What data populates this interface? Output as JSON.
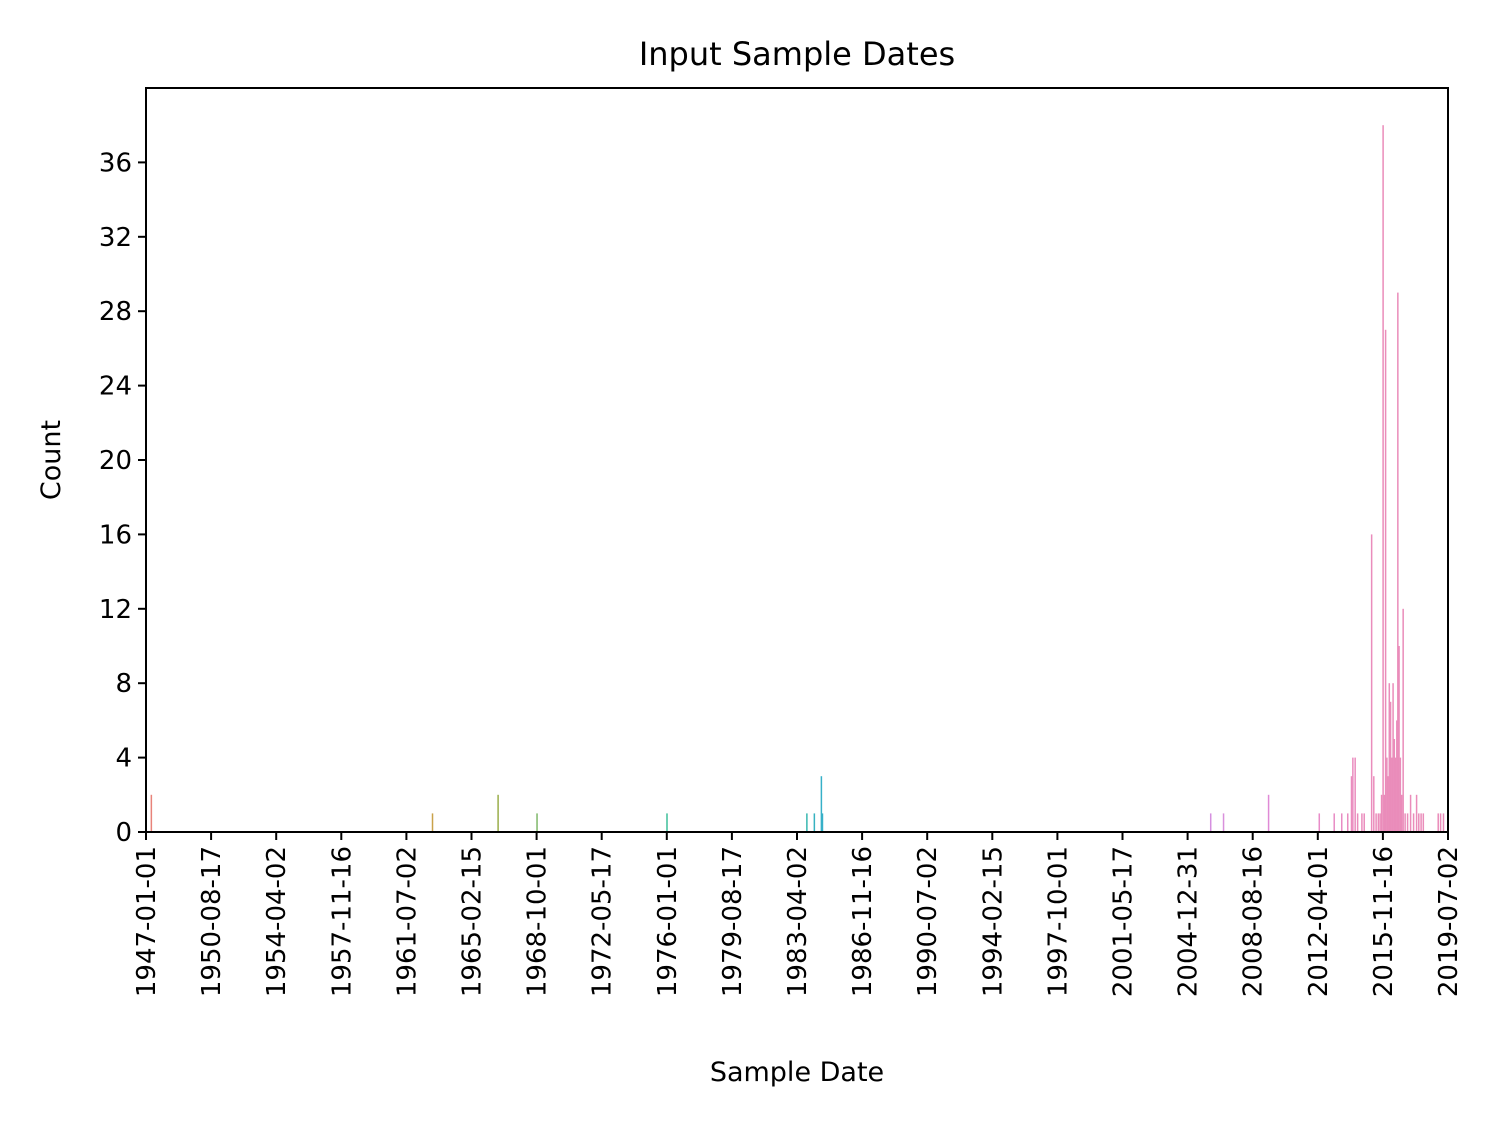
{
  "chart_data": {
    "type": "bar",
    "title": "Input Sample Dates",
    "xlabel": "Sample Date",
    "ylabel": "Count",
    "xlim": [
      "1947-01-01",
      "2019-07-02"
    ],
    "ylim": [
      0,
      40
    ],
    "x_ticks": [
      "1947-01-01",
      "1950-08-17",
      "1954-04-02",
      "1957-11-16",
      "1961-07-02",
      "1965-02-15",
      "1968-10-01",
      "1972-05-17",
      "1976-01-01",
      "1979-08-17",
      "1983-04-02",
      "1986-11-16",
      "1990-07-02",
      "1994-02-15",
      "1997-10-01",
      "2001-05-17",
      "2004-12-31",
      "2008-08-16",
      "2012-04-01",
      "2015-11-16",
      "2019-07-02"
    ],
    "y_ticks": [
      0,
      4,
      8,
      12,
      16,
      20,
      24,
      28,
      32,
      36
    ],
    "grid": false,
    "legend": "none",
    "bars": [
      {
        "date": "1947-04-20",
        "value": 2,
        "color": "#e8837a"
      },
      {
        "date": "1962-12-15",
        "value": 1,
        "color": "#c9a24a"
      },
      {
        "date": "1966-08-10",
        "value": 2,
        "color": "#9aae4a"
      },
      {
        "date": "1968-10-10",
        "value": 1,
        "color": "#7fb86a"
      },
      {
        "date": "1976-01-05",
        "value": 1,
        "color": "#3fbf9a"
      },
      {
        "date": "1983-10-20",
        "value": 1,
        "color": "#38b7b0"
      },
      {
        "date": "1984-03-20",
        "value": 1,
        "color": "#36b2c0"
      },
      {
        "date": "1984-08-10",
        "value": 3,
        "color": "#36b0c8"
      },
      {
        "date": "1984-09-01",
        "value": 1,
        "color": "#36b0c8"
      },
      {
        "date": "2006-04-15",
        "value": 1,
        "color": "#d58fe0"
      },
      {
        "date": "2007-01-01",
        "value": 1,
        "color": "#d990dc"
      },
      {
        "date": "2009-07-05",
        "value": 2,
        "color": "#e08ad6"
      },
      {
        "date": "2012-05-01",
        "value": 1,
        "color": "#e88cc8"
      },
      {
        "date": "2013-03-01",
        "value": 1,
        "color": "#e88cc4"
      },
      {
        "date": "2013-08-01",
        "value": 1,
        "color": "#e88cc4"
      },
      {
        "date": "2013-12-01",
        "value": 1,
        "color": "#e88cc0"
      },
      {
        "date": "2014-02-15",
        "value": 3,
        "color": "#ea8cbe"
      },
      {
        "date": "2014-03-15",
        "value": 4,
        "color": "#ea8cbe"
      },
      {
        "date": "2014-05-01",
        "value": 4,
        "color": "#ea8cbe"
      },
      {
        "date": "2014-06-20",
        "value": 1,
        "color": "#ea8cbc"
      },
      {
        "date": "2014-09-15",
        "value": 1,
        "color": "#ea8cbc"
      },
      {
        "date": "2014-11-01",
        "value": 1,
        "color": "#ea8cbc"
      },
      {
        "date": "2015-04-01",
        "value": 16,
        "color": "#ea8cbc"
      },
      {
        "date": "2015-05-15",
        "value": 3,
        "color": "#ea8cbc"
      },
      {
        "date": "2015-07-01",
        "value": 1,
        "color": "#ea8cba"
      },
      {
        "date": "2015-08-15",
        "value": 1,
        "color": "#ea8cba"
      },
      {
        "date": "2015-09-20",
        "value": 1,
        "color": "#ea8cba"
      },
      {
        "date": "2015-10-20",
        "value": 2,
        "color": "#ea8cba"
      },
      {
        "date": "2015-11-20",
        "value": 38,
        "color": "#ea8cba"
      },
      {
        "date": "2015-12-15",
        "value": 2,
        "color": "#ea8cba"
      },
      {
        "date": "2016-01-10",
        "value": 27,
        "color": "#ea8cba"
      },
      {
        "date": "2016-02-05",
        "value": 4,
        "color": "#ea8cba"
      },
      {
        "date": "2016-03-01",
        "value": 3,
        "color": "#ea8cba"
      },
      {
        "date": "2016-03-25",
        "value": 8,
        "color": "#ea8cba"
      },
      {
        "date": "2016-04-20",
        "value": 7,
        "color": "#ea8cba"
      },
      {
        "date": "2016-05-15",
        "value": 4,
        "color": "#ea8cba"
      },
      {
        "date": "2016-06-10",
        "value": 8,
        "color": "#ea8cba"
      },
      {
        "date": "2016-07-05",
        "value": 5,
        "color": "#ea8cba"
      },
      {
        "date": "2016-08-01",
        "value": 4,
        "color": "#ea8cba"
      },
      {
        "date": "2016-08-25",
        "value": 6,
        "color": "#ea8cba"
      },
      {
        "date": "2016-09-15",
        "value": 29,
        "color": "#ea8cba"
      },
      {
        "date": "2016-10-10",
        "value": 10,
        "color": "#ea8cba"
      },
      {
        "date": "2016-11-05",
        "value": 4,
        "color": "#ea8cba"
      },
      {
        "date": "2016-12-01",
        "value": 2,
        "color": "#ea8cba"
      },
      {
        "date": "2017-01-01",
        "value": 12,
        "color": "#ea8cba"
      },
      {
        "date": "2017-02-10",
        "value": 1,
        "color": "#ea8cba"
      },
      {
        "date": "2017-04-01",
        "value": 1,
        "color": "#ea8cba"
      },
      {
        "date": "2017-06-01",
        "value": 2,
        "color": "#ea8cba"
      },
      {
        "date": "2017-08-01",
        "value": 1,
        "color": "#ea8cba"
      },
      {
        "date": "2017-10-01",
        "value": 2,
        "color": "#ea8cba"
      },
      {
        "date": "2017-11-15",
        "value": 1,
        "color": "#ea8cba"
      },
      {
        "date": "2018-01-01",
        "value": 1,
        "color": "#ea8cba"
      },
      {
        "date": "2018-02-15",
        "value": 1,
        "color": "#ea8cba"
      },
      {
        "date": "2018-12-15",
        "value": 1,
        "color": "#ea8cba"
      },
      {
        "date": "2019-02-01",
        "value": 1,
        "color": "#ea8cba"
      },
      {
        "date": "2019-04-01",
        "value": 1,
        "color": "#ea8cba"
      }
    ]
  }
}
